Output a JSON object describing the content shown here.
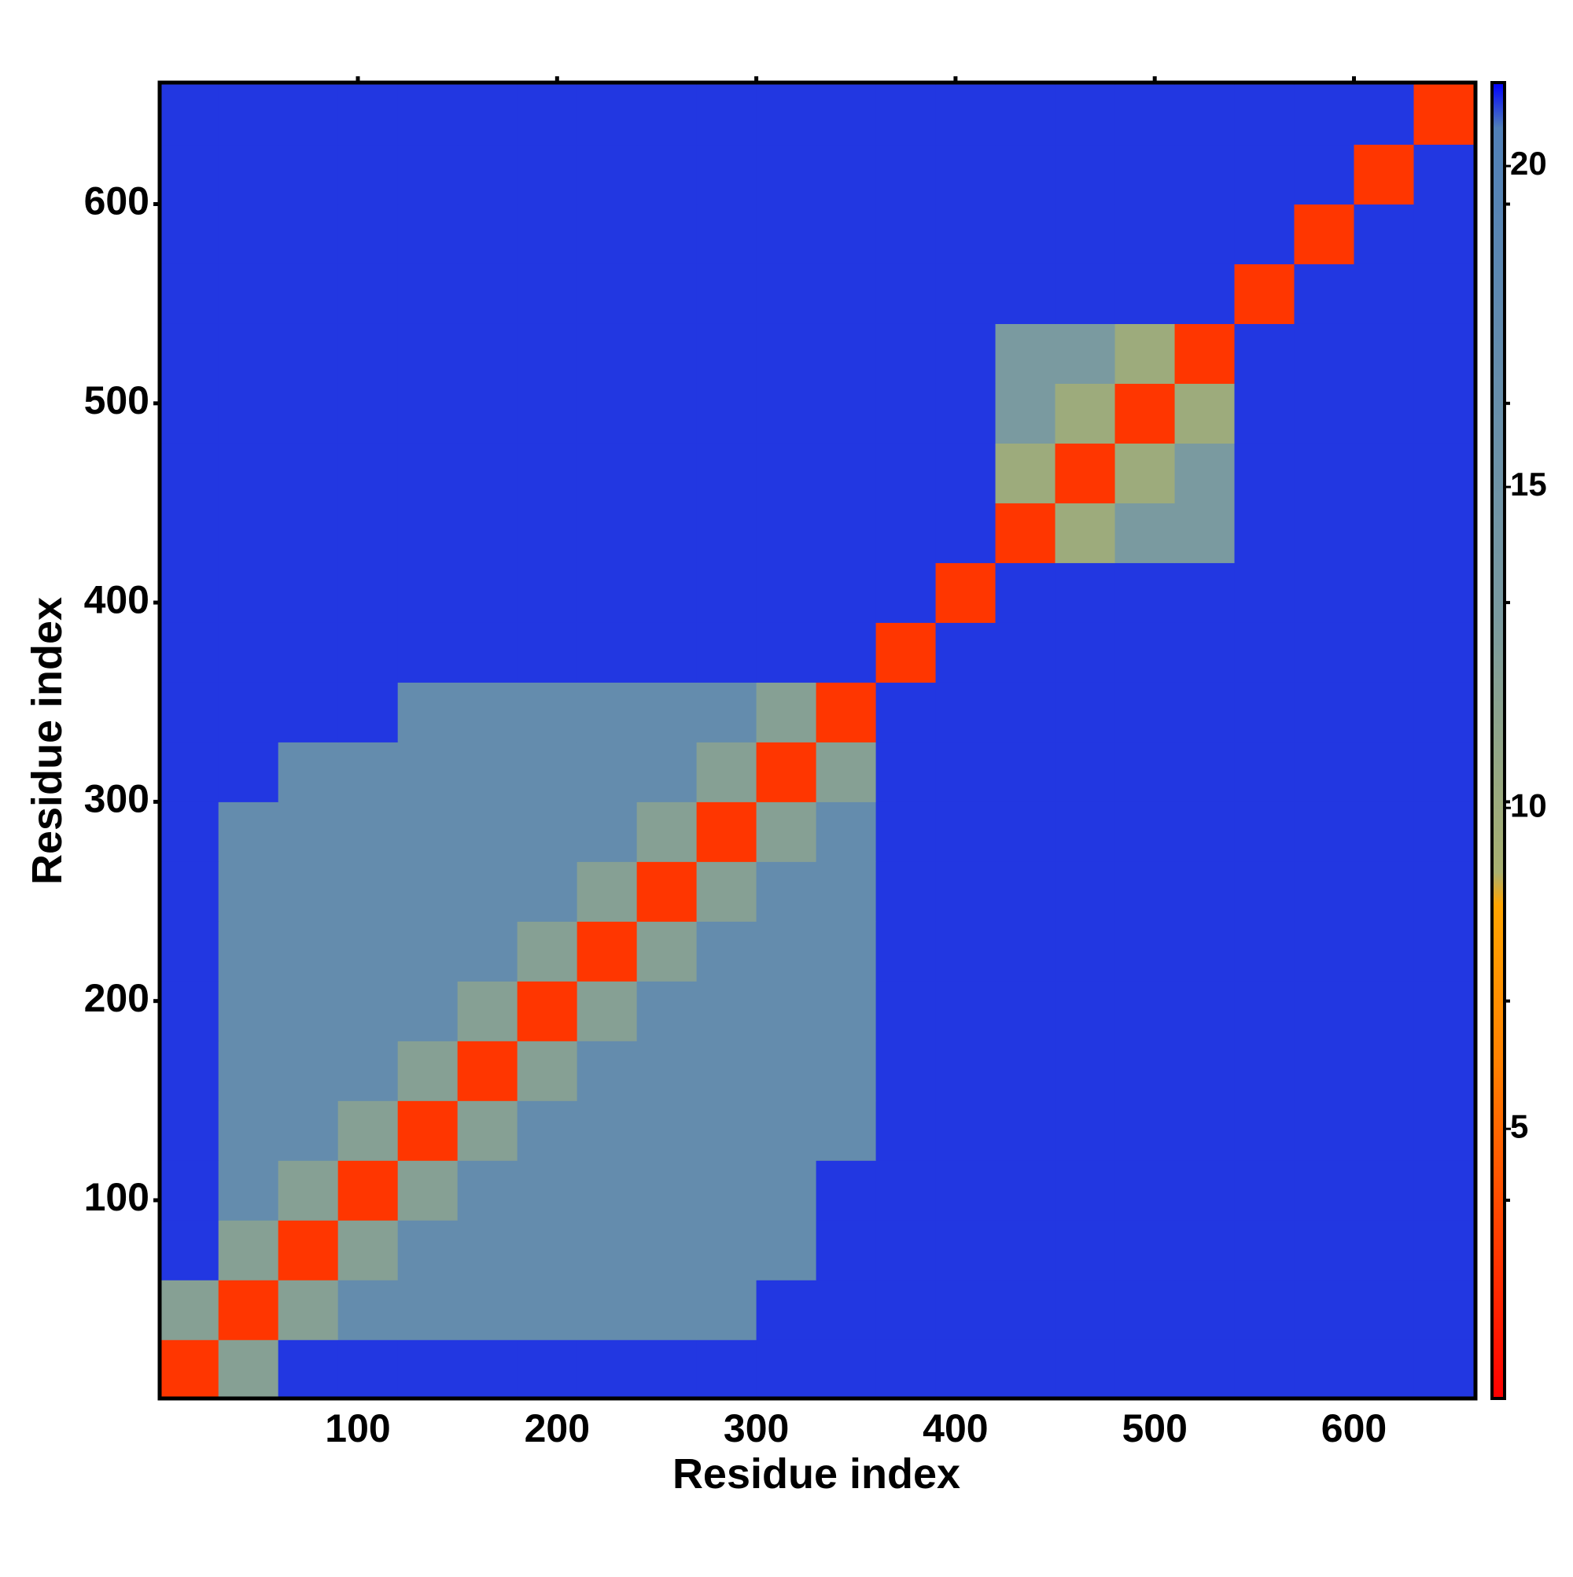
{
  "chart_data": {
    "type": "heatmap",
    "x_label": "Residue index",
    "y_label": "Residue index",
    "xlim": [
      0.5,
      661
    ],
    "ylim": [
      0.5,
      661
    ],
    "xticks": [
      100,
      200,
      300,
      400,
      500,
      600
    ],
    "yticks": [
      100,
      200,
      300,
      400,
      500,
      600
    ],
    "bins": [
      0,
      30,
      60,
      90,
      120,
      150,
      180,
      210,
      240,
      270,
      300,
      330,
      360,
      390,
      420,
      450,
      480,
      510,
      540,
      570,
      600,
      630,
      660
    ],
    "z": [
      [
        3,
        12,
        21,
        21,
        21,
        21,
        21,
        21,
        21,
        21,
        21,
        21,
        21,
        21,
        21,
        21,
        21,
        21,
        21,
        21,
        21,
        21
      ],
      [
        12,
        3,
        12,
        17,
        17,
        17,
        17,
        17,
        17,
        17,
        21,
        21,
        21,
        21,
        21,
        21,
        21,
        21,
        21,
        21,
        21,
        21
      ],
      [
        21,
        12,
        3,
        12,
        17,
        17,
        17,
        17,
        17,
        17,
        17,
        21,
        21,
        21,
        21,
        21,
        21,
        21,
        21,
        21,
        21,
        21
      ],
      [
        21,
        17,
        12,
        3,
        12,
        17,
        17,
        17,
        17,
        17,
        17,
        21,
        21,
        21,
        21,
        21,
        21,
        21,
        21,
        21,
        21,
        21
      ],
      [
        21,
        17,
        17,
        12,
        3,
        12,
        17,
        17,
        17,
        17,
        17,
        17,
        21,
        21,
        21,
        21,
        21,
        21,
        21,
        21,
        21,
        21
      ],
      [
        21,
        17,
        17,
        17,
        12,
        3,
        12,
        17,
        17,
        17,
        17,
        17,
        21,
        21,
        21,
        21,
        21,
        21,
        21,
        21,
        21,
        21
      ],
      [
        21,
        17,
        17,
        17,
        17,
        12,
        3,
        12,
        17,
        17,
        17,
        17,
        21,
        21,
        21,
        21,
        21,
        21,
        21,
        21,
        21,
        21
      ],
      [
        21,
        17,
        17,
        17,
        17,
        17,
        12,
        3,
        12,
        17,
        17,
        17,
        21,
        21,
        21,
        21,
        21,
        21,
        21,
        21,
        21,
        21
      ],
      [
        21,
        17,
        17,
        17,
        17,
        17,
        17,
        12,
        3,
        12,
        17,
        17,
        21,
        21,
        21,
        21,
        21,
        21,
        21,
        21,
        21,
        21
      ],
      [
        21,
        17,
        17,
        17,
        17,
        17,
        17,
        17,
        12,
        3,
        12,
        17,
        21,
        21,
        21,
        21,
        21,
        21,
        21,
        21,
        21,
        21
      ],
      [
        21,
        21,
        17,
        17,
        17,
        17,
        17,
        17,
        17,
        12,
        3,
        12,
        21,
        21,
        21,
        21,
        21,
        21,
        21,
        21,
        21,
        21
      ],
      [
        21,
        21,
        21,
        21,
        17,
        17,
        17,
        17,
        17,
        17,
        12,
        3,
        21,
        21,
        21,
        21,
        21,
        21,
        21,
        21,
        21,
        21
      ],
      [
        21,
        21,
        21,
        21,
        21,
        21,
        21,
        21,
        21,
        21,
        21,
        21,
        3,
        21,
        21,
        21,
        21,
        21,
        21,
        21,
        21,
        21
      ],
      [
        21,
        21,
        21,
        21,
        21,
        21,
        21,
        21,
        21,
        21,
        21,
        21,
        21,
        3,
        21,
        21,
        21,
        21,
        21,
        21,
        21,
        21
      ],
      [
        21,
        21,
        21,
        21,
        21,
        21,
        21,
        21,
        21,
        21,
        21,
        21,
        21,
        21,
        3,
        10,
        13,
        13,
        21,
        21,
        21,
        21
      ],
      [
        21,
        21,
        21,
        21,
        21,
        21,
        21,
        21,
        21,
        21,
        21,
        21,
        21,
        21,
        10,
        3,
        10,
        13,
        21,
        21,
        21,
        21
      ],
      [
        21,
        21,
        21,
        21,
        21,
        21,
        21,
        21,
        21,
        21,
        21,
        21,
        21,
        21,
        13,
        10,
        3,
        10,
        21,
        21,
        21,
        21
      ],
      [
        21,
        21,
        21,
        21,
        21,
        21,
        21,
        21,
        21,
        21,
        21,
        21,
        21,
        21,
        13,
        13,
        10,
        3,
        21,
        21,
        21,
        21
      ],
      [
        21,
        21,
        21,
        21,
        21,
        21,
        21,
        21,
        21,
        21,
        21,
        21,
        21,
        21,
        21,
        21,
        21,
        21,
        3,
        21,
        21,
        21
      ],
      [
        21,
        21,
        21,
        21,
        21,
        21,
        21,
        21,
        21,
        21,
        21,
        21,
        21,
        21,
        21,
        21,
        21,
        21,
        21,
        3,
        21,
        21
      ],
      [
        21,
        21,
        21,
        21,
        21,
        21,
        21,
        21,
        21,
        21,
        21,
        21,
        21,
        21,
        21,
        21,
        21,
        21,
        21,
        21,
        3,
        21
      ],
      [
        21,
        21,
        21,
        21,
        21,
        21,
        21,
        21,
        21,
        21,
        21,
        21,
        21,
        21,
        21,
        21,
        21,
        21,
        21,
        21,
        21,
        3
      ]
    ],
    "clim": [
      0.8,
      21.3
    ],
    "cticks": [
      5,
      10,
      15,
      20
    ],
    "colorscale": [
      {
        "value": 0.8,
        "color": "#ff0000"
      },
      {
        "value": 6,
        "color": "#ff8000"
      },
      {
        "value": 8.5,
        "color": "#ffa500"
      },
      {
        "value": 9,
        "color": "#a8b070"
      },
      {
        "value": 13,
        "color": "#7a9aa0"
      },
      {
        "value": 20.6,
        "color": "#5080b8"
      },
      {
        "value": 21.3,
        "color": "#0000ff"
      }
    ]
  }
}
